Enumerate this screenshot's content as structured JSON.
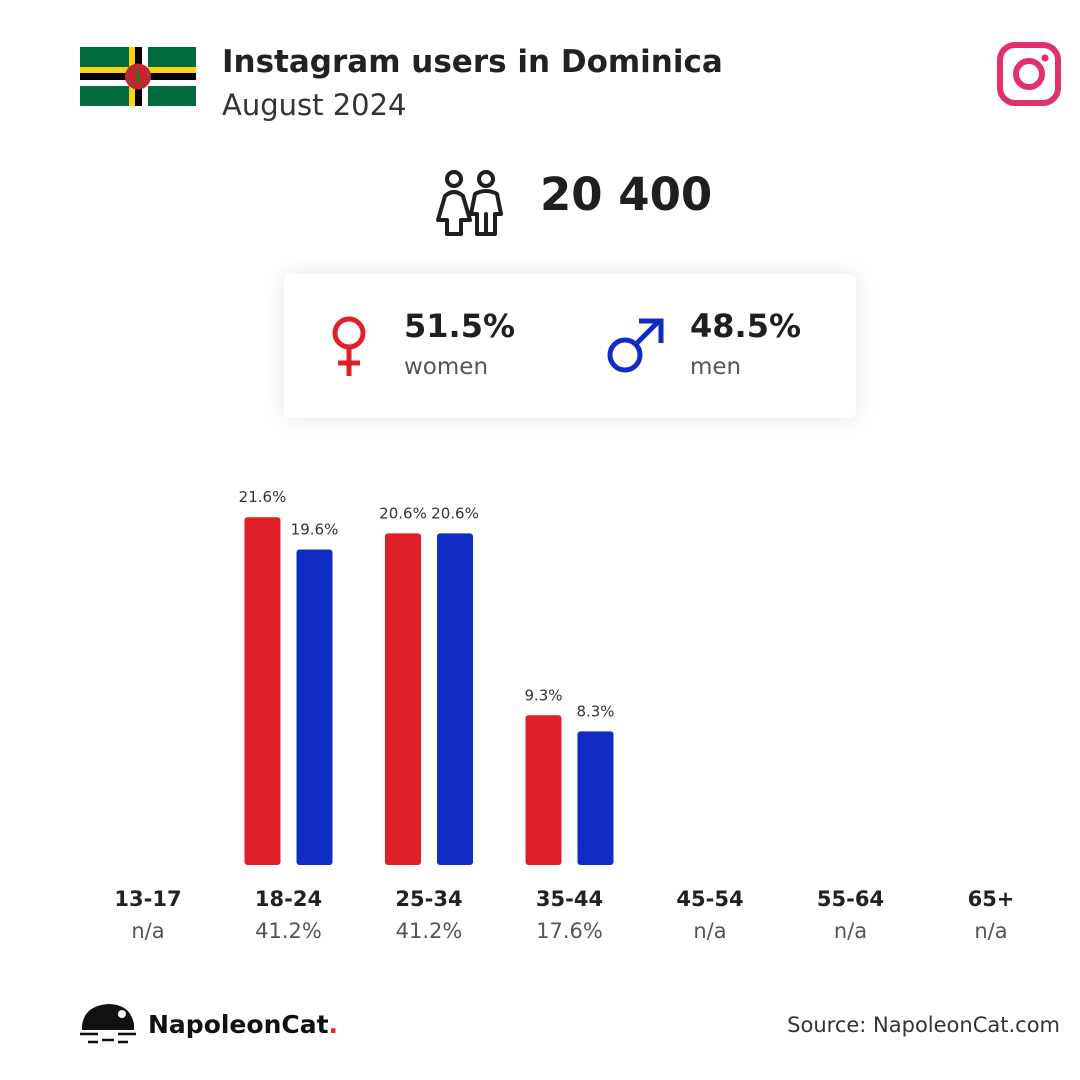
{
  "header": {
    "title": "Instagram users in Dominica",
    "subtitle": "August 2024"
  },
  "total_users": "20 400",
  "gender": {
    "women_pct": "51.5%",
    "women_label": "women",
    "men_pct": "48.5%",
    "men_label": "men"
  },
  "colors": {
    "women": "#df2029",
    "men": "#102cc4",
    "instagram": "#e1306c"
  },
  "chart_data": {
    "type": "bar",
    "categories": [
      "13-17",
      "18-24",
      "25-34",
      "35-44",
      "45-54",
      "55-64",
      "65+"
    ],
    "category_totals": [
      "n/a",
      "41.2%",
      "41.2%",
      "17.6%",
      "n/a",
      "n/a",
      "n/a"
    ],
    "series": [
      {
        "values": [
          null,
          21.6,
          20.6,
          9.3,
          null,
          null,
          null
        ],
        "labels": [
          "",
          "21.6%",
          "20.6%",
          "9.3%",
          "",
          "",
          ""
        ]
      },
      {
        "values": [
          null,
          19.6,
          20.6,
          8.3,
          null,
          null,
          null
        ],
        "labels": [
          "",
          "19.6%",
          "20.6%",
          "8.3%",
          "",
          "",
          ""
        ]
      }
    ]
  },
  "footer": {
    "brand": "NapoleonCat",
    "brand_dot": ".",
    "source": "Source: NapoleonCat.com"
  },
  "icons": {
    "flag": "dominica-flag-icon",
    "logo": "instagram-logo-icon",
    "users": "users-icon",
    "female": "female-symbol-icon",
    "male": "male-symbol-icon",
    "brand": "napoleoncat-logo-icon"
  }
}
